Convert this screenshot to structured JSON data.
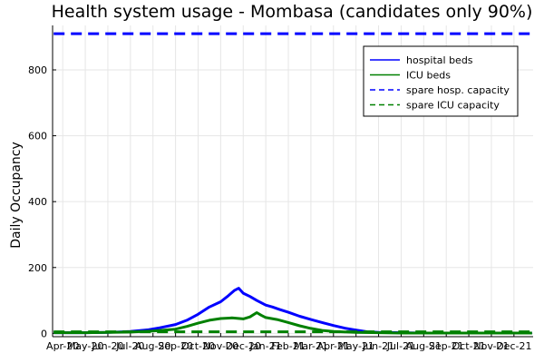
{
  "chart_data": {
    "type": "line",
    "title": "Health system usage - Mombasa (candidates only 90%)",
    "xlabel": "",
    "ylabel": "Daily Occupancy",
    "ylim": [
      -10,
      935
    ],
    "y_ticks": [
      0,
      200,
      400,
      600,
      800
    ],
    "x_categories": [
      "Apr-20",
      "May-20",
      "Jun-20",
      "Jul-20",
      "Aug-20",
      "Sep-20",
      "Oct-20",
      "Nov-20",
      "Dec-20",
      "Jan-21",
      "Feb-21",
      "Mar-21",
      "Apr-21",
      "May-21",
      "Jun-21",
      "Jul-21",
      "Aug-21",
      "Sep-21",
      "Oct-21",
      "Nov-21",
      "Dec-21"
    ],
    "grid": true,
    "legend_position": "top-right",
    "series": [
      {
        "name": "hospital beds",
        "color": "#0000ff",
        "style": "solid",
        "points": [
          [
            -0.4,
            2
          ],
          [
            0,
            2
          ],
          [
            1,
            2
          ],
          [
            2,
            3
          ],
          [
            3,
            6
          ],
          [
            3.8,
            11
          ],
          [
            4.3,
            17
          ],
          [
            5,
            27
          ],
          [
            5.5,
            40
          ],
          [
            6,
            58
          ],
          [
            6.5,
            80
          ],
          [
            7,
            96
          ],
          [
            7.3,
            112
          ],
          [
            7.6,
            130
          ],
          [
            7.8,
            137
          ],
          [
            8,
            122
          ],
          [
            8.3,
            112
          ],
          [
            8.6,
            100
          ],
          [
            9,
            86
          ],
          [
            9.3,
            80
          ],
          [
            9.6,
            73
          ],
          [
            10,
            64
          ],
          [
            10.5,
            52
          ],
          [
            11,
            42
          ],
          [
            11.5,
            33
          ],
          [
            12,
            24
          ],
          [
            12.5,
            16
          ],
          [
            13,
            10
          ],
          [
            13.5,
            5
          ],
          [
            14,
            3
          ],
          [
            15,
            2
          ],
          [
            16,
            1
          ],
          [
            17,
            1
          ],
          [
            18,
            1
          ],
          [
            19,
            1
          ],
          [
            20,
            1
          ],
          [
            20.8,
            1
          ]
        ]
      },
      {
        "name": "ICU beds",
        "color": "#008000",
        "style": "solid",
        "points": [
          [
            -0.4,
            2
          ],
          [
            0,
            2
          ],
          [
            1,
            2
          ],
          [
            2,
            3
          ],
          [
            3,
            4
          ],
          [
            4,
            7
          ],
          [
            5,
            13
          ],
          [
            5.5,
            21
          ],
          [
            6,
            31
          ],
          [
            6.5,
            40
          ],
          [
            7,
            45
          ],
          [
            7.5,
            47
          ],
          [
            8,
            44
          ],
          [
            8.3,
            50
          ],
          [
            8.6,
            63
          ],
          [
            8.8,
            55
          ],
          [
            9,
            48
          ],
          [
            9.5,
            42
          ],
          [
            10,
            33
          ],
          [
            10.5,
            23
          ],
          [
            11,
            15
          ],
          [
            11.5,
            9
          ],
          [
            12,
            6
          ],
          [
            13,
            3
          ],
          [
            14,
            2
          ],
          [
            15,
            1
          ],
          [
            16,
            1
          ],
          [
            17,
            1
          ],
          [
            18,
            1
          ],
          [
            19,
            1
          ],
          [
            20,
            1
          ],
          [
            20.8,
            1
          ]
        ]
      },
      {
        "name": "spare hosp. capacity",
        "color": "#0000ff",
        "style": "dashed",
        "points": [
          [
            -0.4,
            910
          ],
          [
            20.8,
            910
          ]
        ]
      },
      {
        "name": "spare ICU capacity",
        "color": "#008000",
        "style": "dashed",
        "points": [
          [
            -0.4,
            5
          ],
          [
            20.8,
            5
          ]
        ]
      }
    ]
  }
}
